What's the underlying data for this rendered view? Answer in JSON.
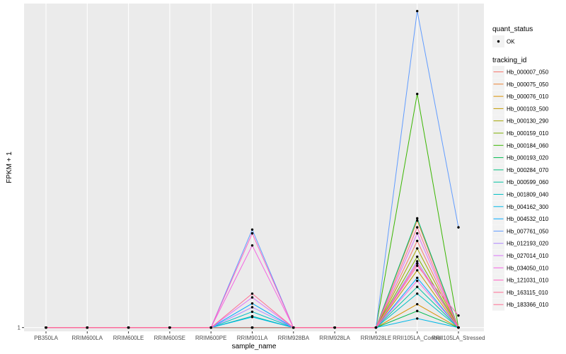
{
  "chart_data": {
    "type": "line",
    "title": "",
    "xlabel": "sample_name",
    "ylabel": "FPKM + 1",
    "y_tick_labels": [
      "1"
    ],
    "ylim": [
      0.5,
      44
    ],
    "categories": [
      "PB350LA",
      "RRIM600LA",
      "RRIM600LE",
      "RRIM600SE",
      "RRIM600PE",
      "RRIM901LA",
      "RRIM928BA",
      "RRIM928LA",
      "RRIM928LE",
      "RRII105LA_Control",
      "RRII105LA_Stressed"
    ],
    "category_labels": [
      "PB350LA",
      "RRIM600LA",
      "RRIM600LE",
      "RRIM600SE",
      "RRIM600PE",
      "RRIM901LA",
      "RRIM928BA",
      "RRIM928LA",
      "RRIM928LE",
      "RRII105LA_Control",
      "RRII105LA_Stressed"
    ],
    "legend_quant": {
      "title": "quant_status",
      "entries": [
        "OK"
      ]
    },
    "legend_tracking": {
      "title": "tracking_id"
    },
    "series": [
      {
        "name": "Hb_000007_050",
        "color": "#F8766D",
        "values": [
          1,
          1,
          1,
          1,
          1,
          1,
          1,
          1,
          1,
          12.5,
          1
        ]
      },
      {
        "name": "Hb_000075_050",
        "color": "#EA8331",
        "values": [
          1,
          1,
          1,
          1,
          1,
          1,
          1,
          1,
          1,
          15.2,
          1
        ]
      },
      {
        "name": "Hb_000076_010",
        "color": "#D89000",
        "values": [
          1,
          1,
          1,
          1,
          1,
          1,
          1,
          1,
          1,
          4.1,
          1
        ]
      },
      {
        "name": "Hb_000103_500",
        "color": "#C09B00",
        "values": [
          1,
          1,
          1,
          1,
          1,
          1,
          1,
          1,
          1,
          8.6,
          1
        ]
      },
      {
        "name": "Hb_000130_290",
        "color": "#A3A500",
        "values": [
          1,
          1,
          1,
          1,
          1,
          1,
          1,
          1,
          1,
          11.5,
          1
        ]
      },
      {
        "name": "Hb_000159_010",
        "color": "#7CAE00",
        "values": [
          1,
          1,
          1,
          1,
          1,
          1,
          1,
          1,
          1,
          10.4,
          1
        ]
      },
      {
        "name": "Hb_000184_060",
        "color": "#39B600",
        "values": [
          1,
          1,
          1,
          1,
          1,
          1,
          1,
          1,
          1,
          32,
          1
        ]
      },
      {
        "name": "Hb_000193_020",
        "color": "#00BB4E",
        "values": [
          1,
          1,
          1,
          1,
          1,
          1,
          1,
          1,
          1,
          3.2,
          1
        ]
      },
      {
        "name": "Hb_000284_070",
        "color": "#00BF7D",
        "values": [
          1,
          1,
          1,
          1,
          1,
          1,
          1,
          1,
          1,
          15.5,
          1
        ]
      },
      {
        "name": "Hb_000599_060",
        "color": "#00C1A3",
        "values": [
          1,
          1,
          1,
          1,
          1,
          2.5,
          1,
          1,
          1,
          6.4,
          1
        ]
      },
      {
        "name": "Hb_001809_040",
        "color": "#00BFC4",
        "values": [
          1,
          1,
          1,
          1,
          1,
          3.1,
          1,
          1,
          1,
          5.5,
          1
        ]
      },
      {
        "name": "Hb_004162_300",
        "color": "#00B8E7",
        "values": [
          1,
          1,
          1,
          1,
          1,
          2.4,
          1,
          1,
          1,
          2.2,
          1
        ]
      },
      {
        "name": "Hb_004532_010",
        "color": "#00A9FF",
        "values": [
          1,
          1,
          1,
          1,
          1,
          4.2,
          1,
          1,
          1,
          7.6,
          1
        ]
      },
      {
        "name": "Hb_007761_050",
        "color": "#619CFF",
        "values": [
          1,
          1,
          1,
          1,
          1,
          14,
          1,
          1,
          1,
          43,
          14.3
        ]
      },
      {
        "name": "Hb_012193_020",
        "color": "#AE87FF",
        "values": [
          1,
          1,
          1,
          1,
          1,
          3.7,
          1,
          1,
          1,
          9.8,
          1
        ]
      },
      {
        "name": "Hb_027014_010",
        "color": "#DB72FB",
        "values": [
          1,
          1,
          1,
          1,
          1,
          5,
          1,
          1,
          1,
          13.5,
          1
        ]
      },
      {
        "name": "Hb_034050_010",
        "color": "#F564E3",
        "values": [
          1,
          1,
          1,
          1,
          1,
          11.9,
          1,
          1,
          1,
          7.2,
          1
        ]
      },
      {
        "name": "Hb_121031_010",
        "color": "#FF61C3",
        "values": [
          1,
          1,
          1,
          1,
          1,
          13.5,
          1,
          1,
          1,
          9.2,
          2.6
        ]
      },
      {
        "name": "Hb_163115_010",
        "color": "#FF6C91",
        "values": [
          1,
          1,
          1,
          1,
          1,
          5.5,
          1,
          1,
          1,
          14.3,
          1
        ]
      },
      {
        "name": "Hb_183366_010",
        "color": "#FF6C91",
        "values": [
          1,
          1,
          1,
          1,
          1,
          1,
          1,
          1,
          1,
          9.5,
          1
        ]
      }
    ]
  }
}
